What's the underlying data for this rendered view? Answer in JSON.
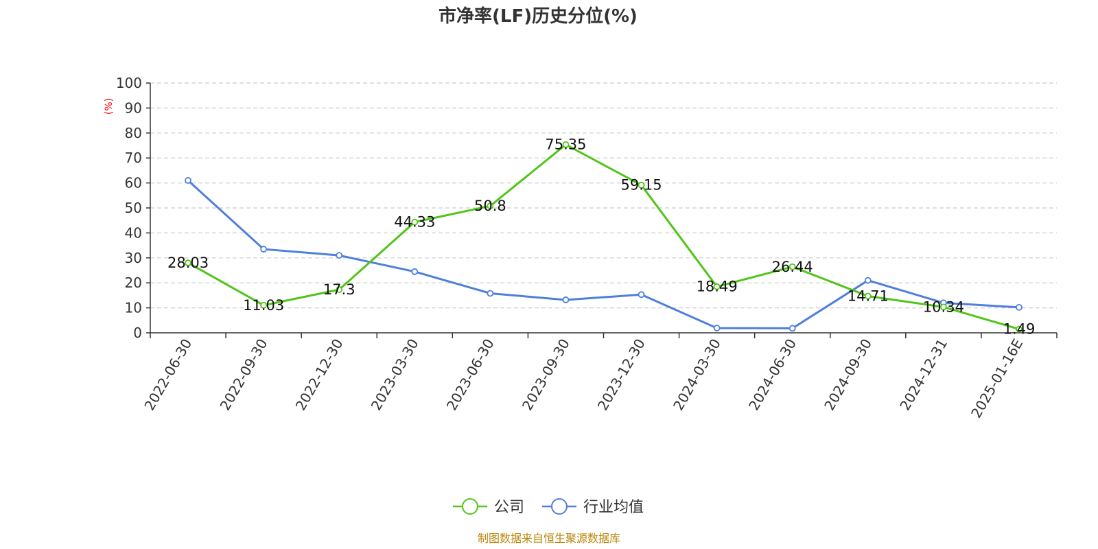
{
  "chart_data": {
    "type": "line",
    "title": "市净率(LF)历史分位(%)",
    "ylabel": "(%)",
    "ylim": [
      0,
      100
    ],
    "yticks": [
      0,
      10,
      20,
      30,
      40,
      50,
      60,
      70,
      80,
      90,
      100
    ],
    "grid": true,
    "legend_position": "bottom",
    "categories": [
      "2022-06-30",
      "2022-09-30",
      "2022-12-30",
      "2023-03-30",
      "2023-06-30",
      "2023-09-30",
      "2023-12-30",
      "2024-03-30",
      "2024-06-30",
      "2024-09-30",
      "2024-12-31",
      "2025-01-16E"
    ],
    "series": [
      {
        "name": "公司",
        "color": "#52c41a",
        "values": [
          28.03,
          11.03,
          17.3,
          44.33,
          50.8,
          75.35,
          59.15,
          18.49,
          26.44,
          14.71,
          10.34,
          1.49
        ],
        "labels": [
          "28.03",
          "11.03",
          "17.3",
          "44.33",
          "50.8",
          "75.35",
          "59.15",
          "18.49",
          "26.44",
          "14.71",
          "10.34",
          "1.49"
        ]
      },
      {
        "name": "行业均值",
        "color": "#4e7fdc",
        "values": [
          61,
          33.5,
          31,
          24.5,
          15.8,
          13.2,
          15.3,
          1.9,
          1.8,
          21,
          12,
          10.2
        ]
      }
    ]
  },
  "source_text": "制图数据来自恒生聚源数据库"
}
